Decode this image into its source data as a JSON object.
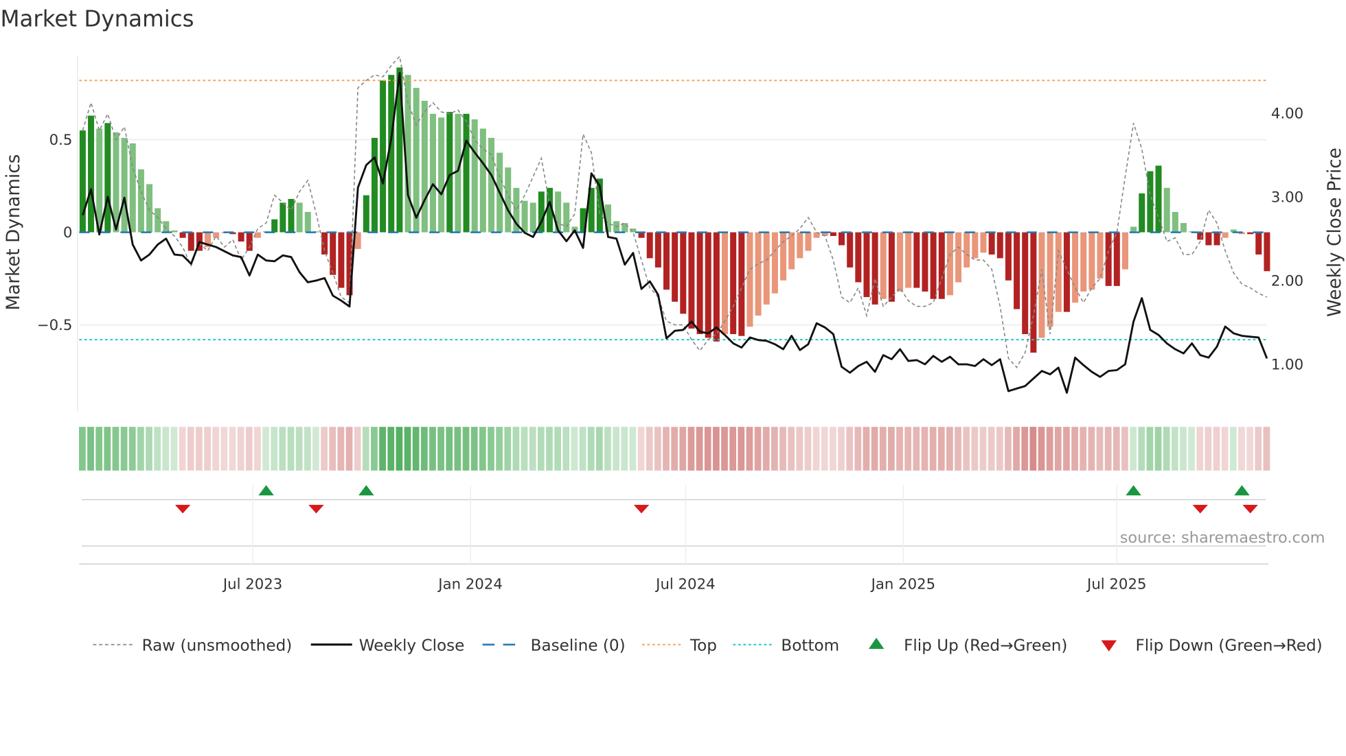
{
  "chart_data": {
    "type": "bar",
    "title": "Market Dynamics",
    "ylabel": "Market Dynamics",
    "y2label": "Weekly Close Price",
    "ylim": [
      -0.95,
      0.95
    ],
    "y2lim": [
      0.55,
      4.4
    ],
    "yticks": [
      {
        "value": 0.5,
        "label": "0.5"
      },
      {
        "value": 0,
        "label": "0"
      },
      {
        "value": -0.5,
        "label": "−0.5"
      }
    ],
    "y2ticks": [
      {
        "value": 4.0,
        "label": "4.00"
      },
      {
        "value": 3.0,
        "label": "3.00"
      },
      {
        "value": 2.0,
        "label": "2.00"
      },
      {
        "value": 1.0,
        "label": "1.00"
      }
    ],
    "xticks": [
      {
        "week": 20.5,
        "label": "Jul 2023"
      },
      {
        "week": 46.6,
        "label": "Jan 2024"
      },
      {
        "week": 72.4,
        "label": "Jul 2024"
      },
      {
        "week": 98.5,
        "label": "Jan 2025"
      },
      {
        "week": 124.1,
        "label": "Jul 2025"
      }
    ],
    "top_level": 0.82,
    "bottom_level": -0.58,
    "baseline": 0,
    "momentum": [
      0.55,
      0.63,
      0.56,
      0.59,
      0.54,
      0.51,
      0.48,
      0.34,
      0.26,
      0.13,
      0.06,
      0.01,
      -0.03,
      -0.1,
      -0.1,
      -0.08,
      -0.03,
      -0.005,
      -0.01,
      -0.05,
      -0.1,
      -0.03,
      0.005,
      0.07,
      0.16,
      0.18,
      0.16,
      0.11,
      0.005,
      -0.12,
      -0.23,
      -0.3,
      -0.34,
      -0.09,
      0.2,
      0.51,
      0.82,
      0.85,
      0.89,
      0.85,
      0.78,
      0.71,
      0.64,
      0.62,
      0.65,
      0.64,
      0.64,
      0.61,
      0.56,
      0.51,
      0.43,
      0.35,
      0.24,
      0.17,
      0.16,
      0.22,
      0.24,
      0.22,
      0.16,
      0.03,
      0.13,
      0.24,
      0.29,
      0.15,
      0.06,
      0.05,
      0.02,
      -0.03,
      -0.14,
      -0.19,
      -0.31,
      -0.375,
      -0.44,
      -0.52,
      -0.55,
      -0.57,
      -0.59,
      -0.55,
      -0.55,
      -0.56,
      -0.51,
      -0.45,
      -0.39,
      -0.33,
      -0.26,
      -0.2,
      -0.14,
      -0.1,
      -0.03,
      -0.02,
      -0.02,
      -0.07,
      -0.19,
      -0.27,
      -0.35,
      -0.39,
      -0.36,
      -0.375,
      -0.32,
      -0.3,
      -0.3,
      -0.32,
      -0.36,
      -0.36,
      -0.34,
      -0.27,
      -0.19,
      -0.14,
      -0.11,
      -0.12,
      -0.14,
      -0.26,
      -0.415,
      -0.55,
      -0.65,
      -0.57,
      -0.51,
      -0.43,
      -0.43,
      -0.38,
      -0.32,
      -0.31,
      -0.25,
      -0.29,
      -0.29,
      -0.2,
      0.03,
      0.21,
      0.33,
      0.36,
      0.24,
      0.11,
      0.05,
      0.005,
      -0.04,
      -0.07,
      -0.07,
      -0.03,
      0.015,
      -0.01,
      -0.01,
      -0.12,
      -0.21
    ],
    "raw": [
      0.55,
      0.7,
      0.55,
      0.64,
      0.5,
      0.57,
      0.35,
      0.22,
      0.12,
      0.08,
      0.02,
      -0.02,
      -0.08,
      -0.18,
      -0.06,
      -0.1,
      -0.02,
      -0.08,
      -0.04,
      -0.15,
      -0.08,
      0.02,
      0.05,
      0.2,
      0.16,
      0.12,
      0.22,
      0.28,
      0.1,
      -0.1,
      -0.22,
      -0.35,
      -0.38,
      0.78,
      0.82,
      0.85,
      0.84,
      0.9,
      0.95,
      0.7,
      0.58,
      0.65,
      0.7,
      0.65,
      0.64,
      0.66,
      0.6,
      0.5,
      0.45,
      0.42,
      0.3,
      0.2,
      0.12,
      0.2,
      0.3,
      0.4,
      0.15,
      0.05,
      0.03,
      0.1,
      0.53,
      0.43,
      0.1,
      0.05,
      0.03,
      0.05,
      0.0,
      -0.15,
      -0.3,
      -0.35,
      -0.48,
      -0.5,
      -0.5,
      -0.58,
      -0.64,
      -0.58,
      -0.55,
      -0.48,
      -0.4,
      -0.3,
      -0.2,
      -0.17,
      -0.15,
      -0.1,
      -0.05,
      -0.02,
      0.02,
      0.08,
      0.0,
      -0.02,
      -0.15,
      -0.35,
      -0.38,
      -0.3,
      -0.45,
      -0.25,
      -0.4,
      -0.35,
      -0.3,
      -0.37,
      -0.4,
      -0.4,
      -0.38,
      -0.25,
      -0.12,
      -0.08,
      -0.12,
      -0.15,
      -0.15,
      -0.2,
      -0.4,
      -0.68,
      -0.73,
      -0.65,
      -0.45,
      -0.2,
      -0.55,
      -0.1,
      -0.2,
      -0.3,
      -0.38,
      -0.3,
      -0.25,
      -0.1,
      0.0,
      0.3,
      0.59,
      0.45,
      0.2,
      0.08,
      -0.05,
      -0.03,
      -0.12,
      -0.12,
      -0.05,
      0.12,
      0.05,
      -0.1,
      -0.22,
      -0.28,
      -0.3,
      -0.33,
      -0.35
    ],
    "weekly_close": [
      2.78,
      3.09,
      2.55,
      3.0,
      2.61,
      2.99,
      2.43,
      2.24,
      2.31,
      2.43,
      2.5,
      2.31,
      2.3,
      2.2,
      2.46,
      2.43,
      2.4,
      2.35,
      2.3,
      2.28,
      2.06,
      2.31,
      2.24,
      2.23,
      2.3,
      2.28,
      2.1,
      1.98,
      2.0,
      2.03,
      1.82,
      1.76,
      1.69,
      3.11,
      3.38,
      3.47,
      3.16,
      3.69,
      4.48,
      3.02,
      2.75,
      2.96,
      3.15,
      3.03,
      3.26,
      3.31,
      3.67,
      3.53,
      3.4,
      3.26,
      3.05,
      2.84,
      2.68,
      2.57,
      2.52,
      2.7,
      2.94,
      2.6,
      2.47,
      2.6,
      2.39,
      3.28,
      3.13,
      2.52,
      2.5,
      2.19,
      2.33,
      1.9,
      1.99,
      1.83,
      1.31,
      1.4,
      1.41,
      1.51,
      1.39,
      1.37,
      1.44,
      1.35,
      1.25,
      1.2,
      1.32,
      1.29,
      1.28,
      1.24,
      1.18,
      1.34,
      1.17,
      1.24,
      1.49,
      1.44,
      1.36,
      0.97,
      0.9,
      0.98,
      1.03,
      0.91,
      1.11,
      1.06,
      1.18,
      1.04,
      1.05,
      1.0,
      1.1,
      1.03,
      1.09,
      1.0,
      1.0,
      0.98,
      1.06,
      0.99,
      1.06,
      0.68,
      0.71,
      0.74,
      0.83,
      0.92,
      0.88,
      0.96,
      0.66,
      1.08,
      0.99,
      0.91,
      0.85,
      0.92,
      0.93,
      1.0,
      1.51,
      1.79,
      1.41,
      1.35,
      1.25,
      1.18,
      1.13,
      1.25,
      1.11,
      1.08,
      1.21,
      1.45,
      1.37,
      1.34,
      1.33,
      1.32,
      1.07
    ],
    "flip_up_weeks": [
      22,
      34,
      126,
      139
    ],
    "flip_down_weeks": [
      12,
      28,
      67,
      134,
      140
    ],
    "colors": {
      "green_strong": "#228b22",
      "green_light": "#7fbf7f",
      "red_strong": "#b22222",
      "red_light": "#e9967a",
      "top": "#f4a460",
      "bottom": "#22c3d0",
      "baseline": "#1f77b4",
      "flip_up": "#1a9641",
      "flip_down": "#d7191c"
    },
    "legend": {
      "raw": "Raw (unsmoothed)",
      "close": "Weekly Close",
      "baseline": "Baseline (0)",
      "top": "Top",
      "bottom": "Bottom",
      "flip_up": "Flip Up (Red→Green)",
      "flip_down": "Flip Down (Green→Red)"
    },
    "source": "source: sharemaestro.com"
  }
}
